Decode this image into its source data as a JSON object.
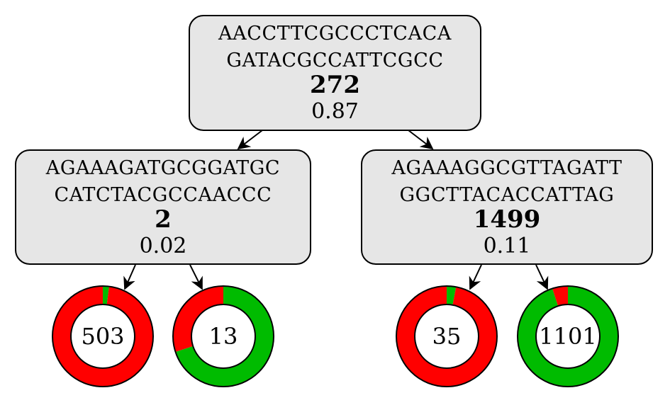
{
  "colors": {
    "negative": "#ff0000",
    "positive": "#00bb00",
    "box_fill": "#e6e6e6"
  },
  "tree": {
    "root": {
      "seq_line1": "AACCTTCGCCCTCACA",
      "seq_line2": "GATACGCCATTCGCC",
      "number": "272",
      "score": "0.87"
    },
    "left": {
      "seq_line1": "AGAAAGATGCGGATGC",
      "seq_line2": "CATCTACGCCAACCC",
      "number": "2",
      "score": "0.02"
    },
    "right": {
      "seq_line1": "AGAAAGGCGTTAGATT",
      "seq_line2": "GGCTTACACCATTAG",
      "number": "1499",
      "score": "0.11"
    }
  },
  "leaves": [
    {
      "label": "503",
      "positive_fraction": 0.02
    },
    {
      "label": "13",
      "positive_fraction": 0.7
    },
    {
      "label": "35",
      "positive_fraction": 0.03
    },
    {
      "label": "1101",
      "positive_fraction": 0.95
    }
  ]
}
